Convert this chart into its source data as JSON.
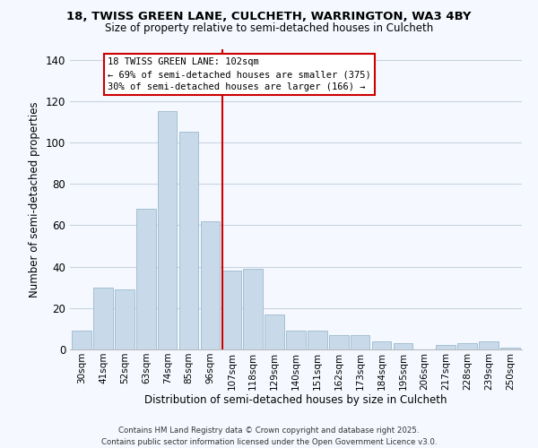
{
  "title_line1": "18, TWISS GREEN LANE, CULCHETH, WARRINGTON, WA3 4BY",
  "title_line2": "Size of property relative to semi-detached houses in Culcheth",
  "xlabel": "Distribution of semi-detached houses by size in Culcheth",
  "ylabel": "Number of semi-detached properties",
  "categories": [
    "30sqm",
    "41sqm",
    "52sqm",
    "63sqm",
    "74sqm",
    "85sqm",
    "96sqm",
    "107sqm",
    "118sqm",
    "129sqm",
    "140sqm",
    "151sqm",
    "162sqm",
    "173sqm",
    "184sqm",
    "195sqm",
    "206sqm",
    "217sqm",
    "228sqm",
    "239sqm",
    "250sqm"
  ],
  "values": [
    9,
    30,
    29,
    68,
    115,
    105,
    62,
    38,
    39,
    17,
    9,
    9,
    7,
    7,
    4,
    3,
    0,
    2,
    3,
    4,
    1
  ],
  "bar_color": "#c8daea",
  "bar_edge_color": "#9ab8cc",
  "red_line_color": "#cc0000",
  "ylim": [
    0,
    145
  ],
  "yticks": [
    0,
    20,
    40,
    60,
    80,
    100,
    120,
    140
  ],
  "annotation_title": "18 TWISS GREEN LANE: 102sqm",
  "annotation_line1": "← 69% of semi-detached houses are smaller (375)",
  "annotation_line2": "30% of semi-detached houses are larger (166) →",
  "footer_line1": "Contains HM Land Registry data © Crown copyright and database right 2025.",
  "footer_line2": "Contains public sector information licensed under the Open Government Licence v3.0.",
  "background_color": "#f5f9ff",
  "grid_color": "#c8d4e0"
}
